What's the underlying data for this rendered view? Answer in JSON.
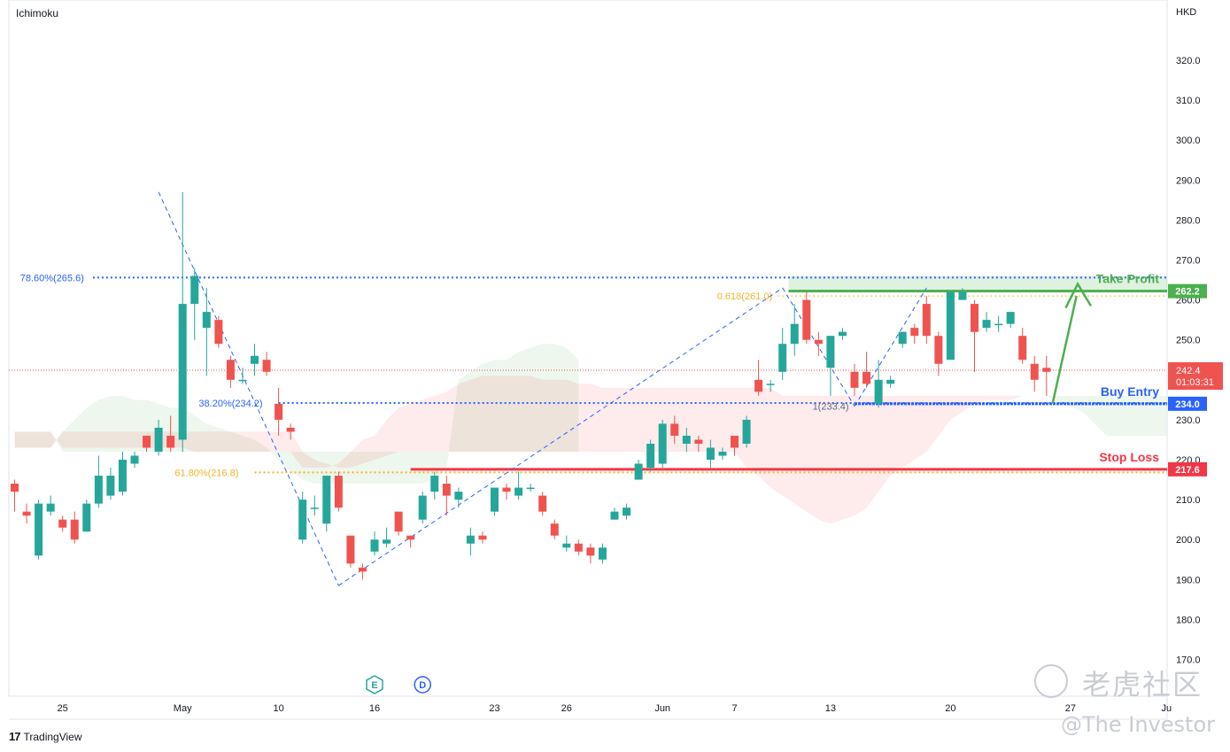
{
  "header": {
    "indicator": "Ichimoku",
    "currency": "HKD"
  },
  "footer": {
    "brand": "TradingView"
  },
  "watermark": {
    "text1": "老虎社区",
    "text2": "@The Investor"
  },
  "colors": {
    "up": "#26a69a",
    "down": "#ef5350",
    "fib": "#2962ff",
    "golden": "#f5b22b",
    "take_profit": "#4caf50",
    "stop_loss": "#f23645",
    "entry": "#2962ff"
  },
  "chart_data": {
    "type": "candlestick",
    "y_axis": {
      "min": 165,
      "max": 325,
      "ticks": [
        "170.0",
        "180.0",
        "190.0",
        "200.0",
        "210.0",
        "220.0",
        "230.0",
        "240.0",
        "250.0",
        "260.0",
        "270.0",
        "280.0",
        "290.0",
        "300.0",
        "310.0",
        "320.0"
      ]
    },
    "x_axis": {
      "ticks": [
        {
          "label": "25",
          "bar": 4
        },
        {
          "label": "May",
          "bar": 14
        },
        {
          "label": "10",
          "bar": 22
        },
        {
          "label": "16",
          "bar": 30
        },
        {
          "label": "23",
          "bar": 40
        },
        {
          "label": "26",
          "bar": 46
        },
        {
          "label": "Jun",
          "bar": 54
        },
        {
          "label": "7",
          "bar": 60
        },
        {
          "label": "13",
          "bar": 68
        },
        {
          "label": "20",
          "bar": 78
        },
        {
          "label": "27",
          "bar": 88
        },
        {
          "label": "Ju",
          "bar": 96
        }
      ]
    },
    "candles": [
      [
        0,
        214,
        212,
        215,
        207
      ],
      [
        1,
        207,
        206,
        209,
        204
      ],
      [
        2,
        196,
        209,
        210,
        195
      ],
      [
        3,
        207,
        209,
        211,
        206
      ],
      [
        4,
        205,
        203,
        206,
        202
      ],
      [
        5,
        205,
        200,
        207,
        199
      ],
      [
        6,
        202,
        209,
        210,
        202
      ],
      [
        7,
        209,
        216,
        221,
        208
      ],
      [
        8,
        211,
        216,
        218,
        210
      ],
      [
        9,
        212,
        220,
        222,
        211
      ],
      [
        10,
        219,
        221,
        222,
        218
      ],
      [
        11,
        226,
        223,
        226,
        222
      ],
      [
        12,
        222,
        228,
        230,
        221
      ],
      [
        13,
        226,
        223,
        231,
        222
      ],
      [
        14,
        225,
        259,
        287,
        222
      ],
      [
        15,
        259,
        266,
        268,
        250
      ],
      [
        16,
        253,
        257,
        263,
        241
      ],
      [
        17,
        255,
        249,
        256,
        248
      ],
      [
        18,
        245,
        240,
        246,
        238
      ],
      [
        19,
        240,
        240,
        243,
        239
      ],
      [
        20,
        244,
        246,
        249,
        241
      ],
      [
        21,
        245,
        242,
        247,
        241
      ],
      [
        22,
        234,
        230,
        238,
        226
      ],
      [
        23,
        228,
        227,
        229,
        225
      ],
      [
        24,
        200,
        210,
        212,
        199
      ],
      [
        25,
        208,
        208,
        211,
        206
      ],
      [
        26,
        204,
        216,
        216,
        202
      ],
      [
        27,
        216,
        208,
        217,
        207
      ],
      [
        28,
        201,
        194,
        201,
        193
      ],
      [
        29,
        193,
        192,
        194,
        190
      ],
      [
        30,
        197,
        200,
        202,
        196
      ],
      [
        31,
        199,
        200,
        203,
        198
      ],
      [
        32,
        207,
        202,
        207,
        201
      ],
      [
        33,
        201,
        200,
        201,
        198
      ],
      [
        34,
        205,
        211,
        212,
        204
      ],
      [
        35,
        212,
        216,
        217,
        210
      ],
      [
        36,
        214,
        211,
        216,
        206
      ],
      [
        37,
        210,
        212,
        213,
        208
      ],
      [
        38,
        199,
        201,
        203,
        196
      ],
      [
        39,
        201,
        200,
        202,
        199
      ],
      [
        40,
        207,
        213,
        213,
        206
      ],
      [
        41,
        213,
        212,
        214,
        210
      ],
      [
        42,
        211,
        213,
        217,
        210
      ],
      [
        43,
        213,
        213,
        214,
        212
      ],
      [
        44,
        211,
        207,
        212,
        206
      ],
      [
        45,
        204,
        201,
        205,
        200
      ],
      [
        46,
        198,
        199,
        201,
        197
      ],
      [
        47,
        199,
        197,
        200,
        196
      ],
      [
        48,
        198,
        196,
        199,
        194
      ],
      [
        49,
        195,
        198,
        199,
        194
      ],
      [
        50,
        205,
        207,
        208,
        205
      ],
      [
        51,
        206,
        208,
        209,
        205
      ],
      [
        52,
        215,
        219,
        220,
        215
      ],
      [
        53,
        218,
        224,
        225,
        217
      ],
      [
        54,
        219,
        229,
        230,
        218
      ],
      [
        55,
        229,
        226,
        231,
        224
      ],
      [
        56,
        224,
        226,
        228,
        222
      ],
      [
        57,
        225,
        224,
        226,
        222
      ],
      [
        58,
        220,
        223,
        225,
        218
      ],
      [
        59,
        221,
        222,
        223,
        220
      ],
      [
        60,
        226,
        223,
        226,
        221
      ],
      [
        61,
        224,
        230,
        231,
        223
      ],
      [
        62,
        240,
        237,
        245,
        236
      ],
      [
        63,
        239,
        239,
        240,
        237
      ],
      [
        64,
        242,
        249,
        253,
        240
      ],
      [
        65,
        249,
        254,
        259,
        246
      ],
      [
        66,
        260,
        250,
        262,
        249
      ],
      [
        67,
        250,
        249,
        252,
        246
      ],
      [
        68,
        243,
        251,
        251,
        236
      ],
      [
        69,
        251,
        252,
        253,
        250
      ],
      [
        70,
        242,
        238,
        244,
        236
      ],
      [
        71,
        242,
        239,
        247,
        238
      ],
      [
        72,
        234,
        240,
        245,
        233
      ],
      [
        73,
        239,
        240,
        241,
        238
      ],
      [
        74,
        249,
        252,
        252,
        248
      ],
      [
        75,
        253,
        251,
        254,
        249
      ],
      [
        76,
        259,
        251,
        261,
        249
      ],
      [
        77,
        251,
        244,
        252,
        241
      ],
      [
        78,
        245,
        262,
        262,
        245
      ],
      [
        79,
        260,
        262,
        263,
        260
      ],
      [
        80,
        259,
        252,
        260,
        242
      ],
      [
        81,
        253,
        255,
        257,
        252
      ],
      [
        82,
        254,
        254,
        256,
        252
      ],
      [
        83,
        254,
        257,
        257,
        253
      ],
      [
        84,
        251,
        245,
        253,
        244
      ],
      [
        85,
        244,
        240,
        246,
        237
      ],
      [
        86,
        243,
        242,
        246,
        236
      ]
    ],
    "cloud_green": [
      [
        0,
        223
      ],
      [
        1,
        223
      ],
      [
        2,
        223
      ],
      [
        3,
        223
      ],
      [
        4,
        227
      ],
      [
        5,
        230
      ],
      [
        6,
        233
      ],
      [
        7,
        235
      ],
      [
        8,
        236
      ],
      [
        9,
        236
      ],
      [
        10,
        235
      ],
      [
        11,
        235
      ],
      [
        12,
        234
      ],
      [
        13,
        233
      ],
      [
        14,
        233
      ],
      [
        15,
        231
      ],
      [
        16,
        229
      ],
      [
        17,
        228
      ],
      [
        18,
        227
      ],
      [
        19,
        226
      ],
      [
        20,
        225
      ],
      [
        21,
        223
      ],
      [
        22,
        220
      ],
      [
        23,
        217
      ],
      [
        24,
        215
      ],
      [
        25,
        214
      ],
      [
        26,
        214
      ],
      [
        27,
        214
      ],
      [
        28,
        214
      ],
      [
        29,
        214
      ],
      [
        30,
        214
      ],
      [
        31,
        214
      ],
      [
        32,
        214
      ],
      [
        33,
        214
      ],
      [
        34,
        214
      ],
      [
        35,
        215
      ],
      [
        36,
        218
      ],
      [
        37,
        240
      ],
      [
        38,
        242
      ],
      [
        39,
        244
      ],
      [
        40,
        245
      ],
      [
        41,
        245
      ],
      [
        42,
        247
      ],
      [
        43,
        248
      ],
      [
        44,
        249
      ],
      [
        45,
        249
      ],
      [
        46,
        248
      ],
      [
        47,
        245
      ]
    ],
    "cloud_red": [
      [
        0,
        227
      ],
      [
        1,
        227
      ],
      [
        2,
        227
      ],
      [
        3,
        227
      ],
      [
        4,
        223
      ],
      [
        5,
        223
      ],
      [
        6,
        223
      ],
      [
        7,
        223
      ],
      [
        8,
        223
      ],
      [
        9,
        223
      ],
      [
        10,
        223
      ],
      [
        11,
        223
      ],
      [
        12,
        223
      ],
      [
        13,
        223
      ],
      [
        14,
        223
      ],
      [
        15,
        222
      ],
      [
        16,
        222
      ],
      [
        17,
        222
      ],
      [
        18,
        222
      ],
      [
        19,
        222
      ],
      [
        20,
        222
      ],
      [
        21,
        222
      ],
      [
        22,
        222
      ],
      [
        23,
        222
      ],
      [
        24,
        218
      ],
      [
        25,
        218
      ],
      [
        26,
        218
      ],
      [
        27,
        219
      ],
      [
        28,
        222
      ],
      [
        29,
        225
      ],
      [
        30,
        226
      ],
      [
        31,
        230
      ],
      [
        32,
        233
      ],
      [
        33,
        234
      ],
      [
        34,
        235
      ],
      [
        35,
        236
      ],
      [
        36,
        237
      ],
      [
        37,
        239
      ],
      [
        38,
        240
      ],
      [
        39,
        241
      ],
      [
        40,
        241
      ],
      [
        41,
        241
      ],
      [
        42,
        241
      ],
      [
        43,
        241
      ],
      [
        44,
        240
      ],
      [
        45,
        240
      ],
      [
        46,
        240
      ],
      [
        47,
        239
      ],
      [
        48,
        239
      ],
      [
        49,
        238
      ],
      [
        50,
        238
      ],
      [
        51,
        238
      ],
      [
        52,
        238
      ],
      [
        53,
        238
      ],
      [
        54,
        238
      ],
      [
        55,
        238
      ],
      [
        56,
        238
      ],
      [
        57,
        238
      ],
      [
        58,
        238
      ],
      [
        59,
        238
      ],
      [
        60,
        238
      ],
      [
        61,
        238
      ],
      [
        62,
        238
      ],
      [
        63,
        238
      ],
      [
        64,
        236
      ],
      [
        65,
        236
      ],
      [
        66,
        236
      ],
      [
        67,
        236
      ],
      [
        68,
        236
      ],
      [
        69,
        236
      ],
      [
        70,
        236
      ],
      [
        71,
        236
      ],
      [
        72,
        236
      ],
      [
        73,
        236
      ],
      [
        74,
        236
      ],
      [
        75,
        236
      ],
      [
        76,
        236
      ],
      [
        77,
        236
      ],
      [
        78,
        236
      ],
      [
        79,
        236
      ],
      [
        80,
        236
      ],
      [
        81,
        236
      ],
      [
        82,
        236
      ],
      [
        83,
        236
      ],
      [
        84,
        236
      ],
      [
        85,
        236
      ],
      [
        86,
        236
      ],
      [
        87,
        236
      ],
      [
        88,
        236
      ],
      [
        89,
        236
      ]
    ],
    "cloud_red_bottom": [
      [
        0,
        223
      ],
      [
        1,
        223
      ],
      [
        2,
        223
      ],
      [
        3,
        223
      ],
      [
        4,
        227
      ],
      [
        5,
        227
      ],
      [
        6,
        227
      ],
      [
        7,
        227
      ],
      [
        8,
        227
      ],
      [
        9,
        227
      ],
      [
        10,
        227
      ],
      [
        11,
        227
      ],
      [
        12,
        227
      ],
      [
        13,
        227
      ],
      [
        14,
        227
      ],
      [
        15,
        227
      ],
      [
        16,
        227
      ],
      [
        17,
        227
      ],
      [
        18,
        227
      ],
      [
        19,
        227
      ],
      [
        20,
        227
      ],
      [
        21,
        227
      ],
      [
        22,
        227
      ],
      [
        23,
        227
      ],
      [
        24,
        222
      ],
      [
        25,
        220
      ],
      [
        26,
        219
      ],
      [
        27,
        218
      ],
      [
        28,
        218
      ],
      [
        29,
        219
      ],
      [
        30,
        220
      ],
      [
        31,
        221
      ],
      [
        32,
        222
      ],
      [
        33,
        222
      ],
      [
        34,
        222
      ],
      [
        35,
        222
      ],
      [
        36,
        222
      ],
      [
        37,
        222
      ],
      [
        38,
        222
      ],
      [
        39,
        222
      ],
      [
        40,
        222
      ],
      [
        41,
        222
      ],
      [
        42,
        222
      ],
      [
        43,
        222
      ],
      [
        44,
        222
      ],
      [
        45,
        222
      ],
      [
        46,
        222
      ],
      [
        47,
        222
      ],
      [
        48,
        222
      ],
      [
        49,
        222
      ],
      [
        50,
        222
      ],
      [
        51,
        222
      ],
      [
        52,
        222
      ],
      [
        53,
        222
      ],
      [
        54,
        222
      ],
      [
        55,
        222
      ],
      [
        56,
        222
      ],
      [
        57,
        222
      ],
      [
        58,
        222
      ],
      [
        59,
        222
      ],
      [
        60,
        222
      ],
      [
        61,
        218
      ],
      [
        62,
        216
      ],
      [
        63,
        213
      ],
      [
        64,
        211
      ],
      [
        65,
        209
      ],
      [
        66,
        207
      ],
      [
        67,
        205
      ],
      [
        68,
        204
      ],
      [
        69,
        205
      ],
      [
        70,
        206
      ],
      [
        71,
        208
      ],
      [
        72,
        212
      ],
      [
        73,
        216
      ],
      [
        74,
        218
      ],
      [
        75,
        220
      ],
      [
        76,
        222
      ],
      [
        77,
        226
      ],
      [
        78,
        230
      ],
      [
        79,
        232
      ],
      [
        80,
        234
      ],
      [
        81,
        235
      ],
      [
        82,
        235
      ],
      [
        83,
        235
      ],
      [
        84,
        236
      ],
      [
        85,
        236
      ],
      [
        86,
        236
      ],
      [
        87,
        236
      ],
      [
        88,
        236
      ],
      [
        89,
        236
      ]
    ],
    "cloud_green_right": [
      [
        86,
        236
      ],
      [
        87,
        236
      ],
      [
        88,
        236
      ],
      [
        89,
        236
      ],
      [
        90,
        236
      ],
      [
        91,
        236
      ]
    ],
    "fib_levels": [
      {
        "label": "78.60%(265.6)",
        "value": 265.6,
        "x_start": 8,
        "x_end": 96
      },
      {
        "label": "38.20%(234.2)",
        "value": 234.2,
        "x_start": 22,
        "x_end": 96
      },
      {
        "label": "61.80%(216.8)",
        "value": 216.8,
        "x_start": 20,
        "x_end": 96
      }
    ],
    "fib_ext": {
      "label": "0.618(261.0)",
      "value": 261.0,
      "x_start": 63
    },
    "fib_point": {
      "label": "1(233.4)",
      "value": 233.4
    },
    "zones": {
      "take_profit": {
        "label": "Take Profit",
        "value": 262.2,
        "price_tag": "262.2",
        "zone_top": 266
      },
      "buy_entry": {
        "label": "Buy Entry",
        "value": 234.0,
        "price_tag": "234.0"
      },
      "stop_loss": {
        "label": "Stop Loss",
        "value": 217.6,
        "price_tag": "217.6"
      },
      "current": {
        "value": 242.4,
        "price_tag": "242.4",
        "countdown": "01:03:31"
      }
    },
    "markers": [
      {
        "label": "E",
        "bar": 30
      },
      {
        "label": "D",
        "bar": 34
      }
    ]
  }
}
